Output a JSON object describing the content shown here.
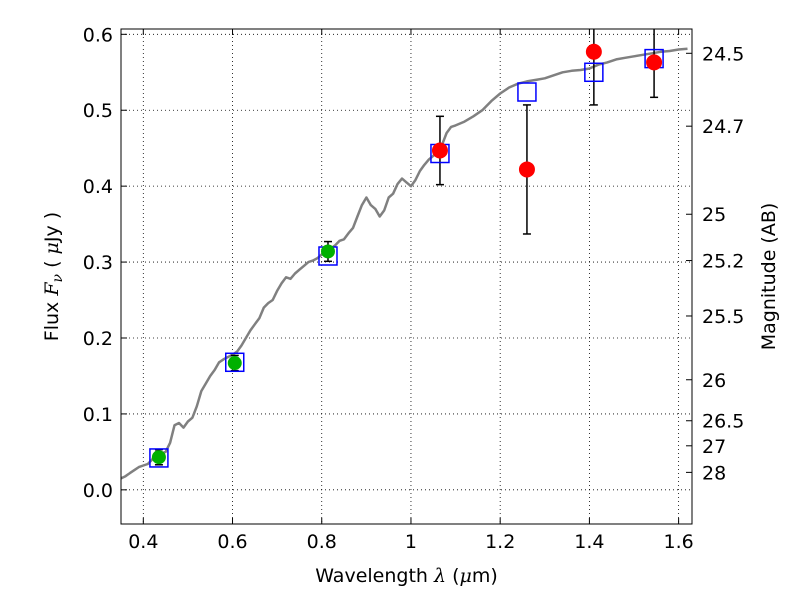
{
  "chart_data": {
    "type": "scatter",
    "xlabel": {
      "prefix": "Wavelength ",
      "symbol": "λ",
      "unit_open": " (",
      "unit_mu": "μ",
      "unit_rest": "m)"
    },
    "ylabel": {
      "prefix": "Flux ",
      "symbol": "F",
      "subscript": "ν",
      "unit_open": " ( ",
      "unit_mu": "μ",
      "unit_rest": "Jy )"
    },
    "y2label": "Magnitude (AB)",
    "xlim": [
      0.35,
      1.63
    ],
    "ylim": [
      -0.045,
      0.607
    ],
    "grid": true,
    "x_ticks": [
      {
        "value": 0.4,
        "label": "0.4"
      },
      {
        "value": 0.6,
        "label": "0.6"
      },
      {
        "value": 0.8,
        "label": "0.8"
      },
      {
        "value": 1.0,
        "label": "1"
      },
      {
        "value": 1.2,
        "label": "1.2"
      },
      {
        "value": 1.4,
        "label": "1.4"
      },
      {
        "value": 1.6,
        "label": "1.6"
      }
    ],
    "y_ticks": [
      {
        "value": 0.0,
        "label": "0.0"
      },
      {
        "value": 0.1,
        "label": "0.1"
      },
      {
        "value": 0.2,
        "label": "0.2"
      },
      {
        "value": 0.3,
        "label": "0.3"
      },
      {
        "value": 0.4,
        "label": "0.4"
      },
      {
        "value": 0.5,
        "label": "0.5"
      },
      {
        "value": 0.6,
        "label": "0.6"
      }
    ],
    "mag_ticks": [
      {
        "label": "24.5",
        "flux": 0.575
      },
      {
        "label": "24.7",
        "flux": 0.479
      },
      {
        "label": "25",
        "flux": 0.363
      },
      {
        "label": "25.2",
        "flux": 0.302
      },
      {
        "label": "25.5",
        "flux": 0.229
      },
      {
        "label": "26",
        "flux": 0.145
      },
      {
        "label": "26.5",
        "flux": 0.091
      },
      {
        "label": "27",
        "flux": 0.058
      },
      {
        "label": "28",
        "flux": 0.023
      }
    ],
    "series": [
      {
        "kind": "model_spectrum",
        "color": "#808080",
        "points": [
          [
            0.35,
            0.015
          ],
          [
            0.36,
            0.018
          ],
          [
            0.37,
            0.022
          ],
          [
            0.38,
            0.026
          ],
          [
            0.39,
            0.03
          ],
          [
            0.4,
            0.032
          ],
          [
            0.41,
            0.034
          ],
          [
            0.42,
            0.04
          ],
          [
            0.43,
            0.052
          ],
          [
            0.44,
            0.048
          ],
          [
            0.45,
            0.05
          ],
          [
            0.46,
            0.062
          ],
          [
            0.47,
            0.085
          ],
          [
            0.48,
            0.088
          ],
          [
            0.49,
            0.082
          ],
          [
            0.5,
            0.09
          ],
          [
            0.51,
            0.095
          ],
          [
            0.52,
            0.11
          ],
          [
            0.53,
            0.13
          ],
          [
            0.54,
            0.14
          ],
          [
            0.55,
            0.15
          ],
          [
            0.56,
            0.158
          ],
          [
            0.57,
            0.168
          ],
          [
            0.58,
            0.172
          ],
          [
            0.59,
            0.175
          ],
          [
            0.6,
            0.178
          ],
          [
            0.61,
            0.182
          ],
          [
            0.62,
            0.19
          ],
          [
            0.63,
            0.2
          ],
          [
            0.64,
            0.21
          ],
          [
            0.65,
            0.218
          ],
          [
            0.66,
            0.226
          ],
          [
            0.67,
            0.24
          ],
          [
            0.68,
            0.246
          ],
          [
            0.69,
            0.25
          ],
          [
            0.7,
            0.262
          ],
          [
            0.71,
            0.272
          ],
          [
            0.72,
            0.28
          ],
          [
            0.73,
            0.278
          ],
          [
            0.74,
            0.285
          ],
          [
            0.75,
            0.29
          ],
          [
            0.76,
            0.295
          ],
          [
            0.77,
            0.3
          ],
          [
            0.78,
            0.302
          ],
          [
            0.79,
            0.305
          ],
          [
            0.8,
            0.31
          ],
          [
            0.81,
            0.316
          ],
          [
            0.82,
            0.318
          ],
          [
            0.83,
            0.322
          ],
          [
            0.84,
            0.328
          ],
          [
            0.85,
            0.33
          ],
          [
            0.86,
            0.338
          ],
          [
            0.87,
            0.345
          ],
          [
            0.88,
            0.36
          ],
          [
            0.89,
            0.375
          ],
          [
            0.9,
            0.385
          ],
          [
            0.91,
            0.375
          ],
          [
            0.92,
            0.37
          ],
          [
            0.93,
            0.36
          ],
          [
            0.94,
            0.368
          ],
          [
            0.95,
            0.385
          ],
          [
            0.96,
            0.39
          ],
          [
            0.97,
            0.403
          ],
          [
            0.98,
            0.41
          ],
          [
            0.99,
            0.405
          ],
          [
            1.0,
            0.4
          ],
          [
            1.01,
            0.408
          ],
          [
            1.02,
            0.42
          ],
          [
            1.03,
            0.428
          ],
          [
            1.04,
            0.435
          ],
          [
            1.05,
            0.44
          ],
          [
            1.06,
            0.448
          ],
          [
            1.07,
            0.455
          ],
          [
            1.08,
            0.47
          ],
          [
            1.09,
            0.478
          ],
          [
            1.1,
            0.48
          ],
          [
            1.12,
            0.485
          ],
          [
            1.14,
            0.492
          ],
          [
            1.16,
            0.5
          ],
          [
            1.18,
            0.512
          ],
          [
            1.2,
            0.522
          ],
          [
            1.22,
            0.53
          ],
          [
            1.24,
            0.535
          ],
          [
            1.26,
            0.538
          ],
          [
            1.28,
            0.54
          ],
          [
            1.3,
            0.542
          ],
          [
            1.32,
            0.546
          ],
          [
            1.34,
            0.55
          ],
          [
            1.36,
            0.552
          ],
          [
            1.38,
            0.553
          ],
          [
            1.4,
            0.555
          ],
          [
            1.42,
            0.56
          ],
          [
            1.44,
            0.563
          ],
          [
            1.46,
            0.567
          ],
          [
            1.48,
            0.569
          ],
          [
            1.5,
            0.571
          ],
          [
            1.52,
            0.573
          ],
          [
            1.54,
            0.575
          ],
          [
            1.56,
            0.577
          ],
          [
            1.58,
            0.578
          ],
          [
            1.6,
            0.58
          ],
          [
            1.62,
            0.581
          ]
        ]
      },
      {
        "kind": "model_band_flux",
        "color": "#0000ff",
        "points": [
          [
            0.435,
            0.042
          ],
          [
            0.605,
            0.168
          ],
          [
            0.814,
            0.308
          ],
          [
            1.065,
            0.443
          ],
          [
            1.26,
            0.524
          ],
          [
            1.41,
            0.55
          ],
          [
            1.545,
            0.568
          ]
        ]
      },
      {
        "kind": "observed_optical",
        "color": "#00b000",
        "points": [
          {
            "x": 0.435,
            "y": 0.043,
            "err": 0.01
          },
          {
            "x": 0.605,
            "y": 0.167,
            "err": 0.01
          },
          {
            "x": 0.814,
            "y": 0.314,
            "err": 0.013
          }
        ]
      },
      {
        "kind": "observed_nir",
        "color": "#ff0000",
        "points": [
          {
            "x": 1.065,
            "y": 0.447,
            "err": 0.045
          },
          {
            "x": 1.26,
            "y": 0.422,
            "err": 0.085
          },
          {
            "x": 1.41,
            "y": 0.577,
            "err": 0.07
          },
          {
            "x": 1.545,
            "y": 0.563,
            "err": 0.046
          }
        ]
      }
    ]
  }
}
